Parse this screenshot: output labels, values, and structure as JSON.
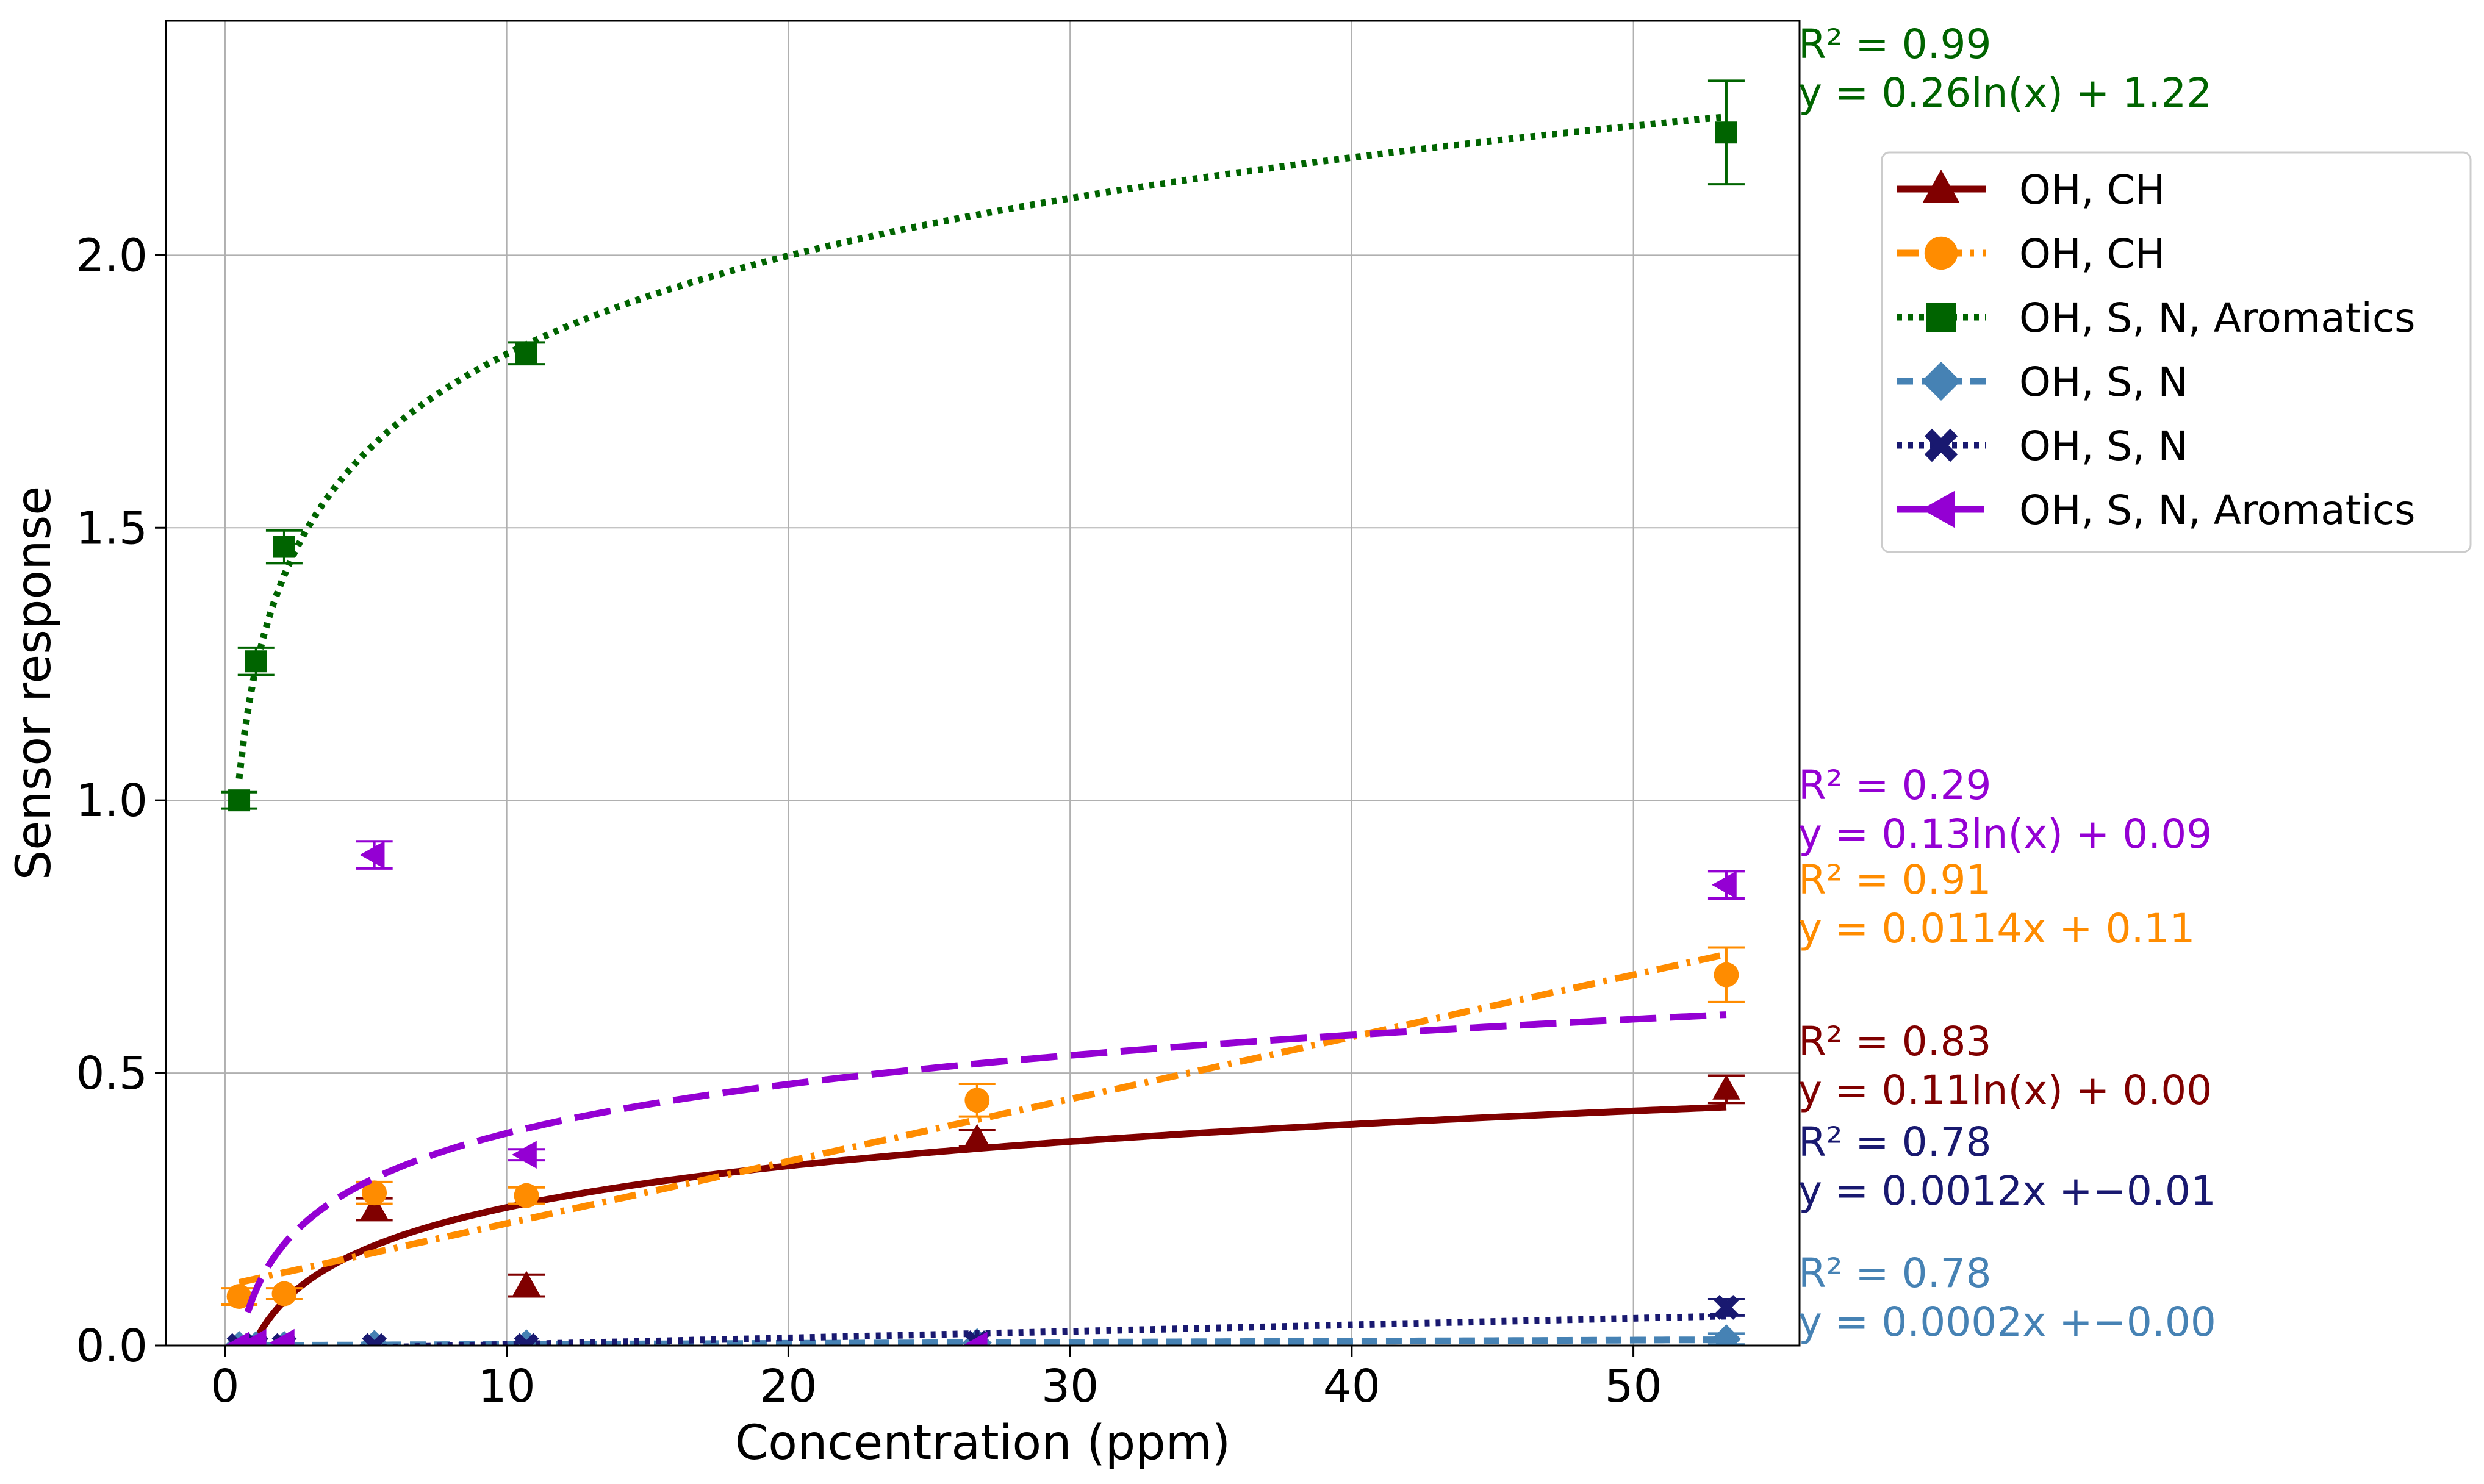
{
  "chart_data": {
    "type": "scatter",
    "title": "",
    "xlabel": "Concentration (ppm)",
    "ylabel": "Sensor response",
    "xlim": [
      -2.1,
      55.9
    ],
    "ylim": [
      0,
      2.43
    ],
    "xticks": [
      0,
      10,
      20,
      30,
      40,
      50
    ],
    "yticks": [
      0.0,
      0.5,
      1.0,
      1.5,
      2.0
    ],
    "xtick_labels": [
      "0",
      "10",
      "20",
      "30",
      "40",
      "50"
    ],
    "ytick_labels": [
      "0.0",
      "0.5",
      "1.0",
      "1.5",
      "2.0"
    ],
    "grid": true,
    "legend_position": "right",
    "series": [
      {
        "name": "OH, CH",
        "color": "#800000",
        "marker": "triangle",
        "linestyle": "solid",
        "fit": {
          "type": "log",
          "a": 0.11,
          "b": 0.0,
          "xmin": 1.0,
          "xmax": 53.3
        },
        "points": [
          {
            "x": 0.5,
            "y": 0.0,
            "err": 0.0
          },
          {
            "x": 1.1,
            "y": 0.0,
            "err": 0.0
          },
          {
            "x": 2.1,
            "y": 0.0,
            "err": 0.0
          },
          {
            "x": 5.3,
            "y": 0.25,
            "err": 0.02
          },
          {
            "x": 10.7,
            "y": 0.11,
            "err": 0.02
          },
          {
            "x": 26.7,
            "y": 0.38,
            "err": 0.015
          },
          {
            "x": 53.3,
            "y": 0.47,
            "err": 0.025
          }
        ],
        "annotation": {
          "r2": "R² = 0.83",
          "equation": "y = 0.11ln(x) + 0.00"
        }
      },
      {
        "name": "OH, CH",
        "color": "#ff8c00",
        "marker": "circle",
        "linestyle": "dashdot",
        "fit": {
          "type": "linear",
          "a": 0.0114,
          "b": 0.11,
          "xmin": 0.5,
          "xmax": 53.3
        },
        "points": [
          {
            "x": 0.5,
            "y": 0.09,
            "err": 0.015
          },
          {
            "x": 2.1,
            "y": 0.095,
            "err": 0.01
          },
          {
            "x": 5.3,
            "y": 0.28,
            "err": 0.02
          },
          {
            "x": 10.7,
            "y": 0.275,
            "err": 0.015
          },
          {
            "x": 26.7,
            "y": 0.45,
            "err": 0.03
          },
          {
            "x": 53.3,
            "y": 0.68,
            "err": 0.05
          }
        ],
        "annotation": {
          "r2": "R² = 0.91",
          "equation": "y = 0.0114x + 0.11"
        }
      },
      {
        "name": "OH, S, N, Aromatics",
        "color": "#006400",
        "marker": "square",
        "linestyle": "dotted",
        "fit": {
          "type": "log",
          "a": 0.26,
          "b": 1.22,
          "xmin": 0.5,
          "xmax": 53.3
        },
        "points": [
          {
            "x": 0.5,
            "y": 1.0,
            "err": 0.015
          },
          {
            "x": 1.1,
            "y": 1.255,
            "err": 0.025
          },
          {
            "x": 2.1,
            "y": 1.465,
            "err": 0.03
          },
          {
            "x": 10.7,
            "y": 1.82,
            "err": 0.02
          },
          {
            "x": 53.3,
            "y": 2.225,
            "err": 0.095
          }
        ],
        "annotation": {
          "r2": "R² = 0.99",
          "equation": "y = 0.26ln(x) + 1.22"
        }
      },
      {
        "name": "OH, S, N",
        "color": "#4682b4",
        "marker": "diamond",
        "linestyle": "dashed",
        "fit": {
          "type": "linear",
          "a": 0.0002,
          "b": 0.0,
          "xmin": 0.5,
          "xmax": 53.3
        },
        "points": [
          {
            "x": 0.5,
            "y": 0.0,
            "err": 0.0
          },
          {
            "x": 1.1,
            "y": 0.0,
            "err": 0.0
          },
          {
            "x": 2.1,
            "y": 0.0,
            "err": 0.0
          },
          {
            "x": 5.3,
            "y": 0.002,
            "err": 0.0
          },
          {
            "x": 10.7,
            "y": 0.003,
            "err": 0.0
          },
          {
            "x": 26.7,
            "y": 0.005,
            "err": 0.0
          },
          {
            "x": 53.3,
            "y": 0.012,
            "err": 0.01
          }
        ],
        "annotation": {
          "r2": "R² = 0.78",
          "equation": "y = 0.0002x +−0.00"
        }
      },
      {
        "name": "OH, S, N",
        "color": "#191970",
        "marker": "x",
        "linestyle": "dotted",
        "fit": {
          "type": "linear",
          "a": 0.0012,
          "b": -0.01,
          "xmin": 0.5,
          "xmax": 53.3
        },
        "points": [
          {
            "x": 0.5,
            "y": 0.0,
            "err": 0.0
          },
          {
            "x": 1.1,
            "y": 0.0,
            "err": 0.0
          },
          {
            "x": 2.1,
            "y": 0.0,
            "err": 0.0
          },
          {
            "x": 5.3,
            "y": 0.0,
            "err": 0.0
          },
          {
            "x": 10.7,
            "y": 0.0,
            "err": 0.0
          },
          {
            "x": 26.7,
            "y": 0.005,
            "err": 0.0
          },
          {
            "x": 53.3,
            "y": 0.07,
            "err": 0.015
          }
        ],
        "annotation": {
          "r2": "R² = 0.78",
          "equation": "y = 0.0012x +−0.01"
        }
      },
      {
        "name": "OH, S, N, Aromatics",
        "color": "#9400d3",
        "marker": "triangle-left",
        "linestyle": "longdash",
        "fit": {
          "type": "log",
          "a": 0.13,
          "b": 0.09,
          "xmin": 0.8,
          "xmax": 53.3
        },
        "points": [
          {
            "x": 0.5,
            "y": 0.0,
            "err": 0.0
          },
          {
            "x": 1.1,
            "y": 0.005,
            "err": 0.0
          },
          {
            "x": 2.1,
            "y": 0.005,
            "err": 0.0
          },
          {
            "x": 5.3,
            "y": 0.9,
            "err": 0.025
          },
          {
            "x": 10.7,
            "y": 0.35,
            "err": 0.01
          },
          {
            "x": 26.7,
            "y": 0.0,
            "err": 0.0
          },
          {
            "x": 53.3,
            "y": 0.845,
            "err": 0.025
          }
        ],
        "annotation": {
          "r2": "R² = 0.29",
          "equation": "y = 0.13ln(x) + 0.09"
        }
      }
    ]
  }
}
